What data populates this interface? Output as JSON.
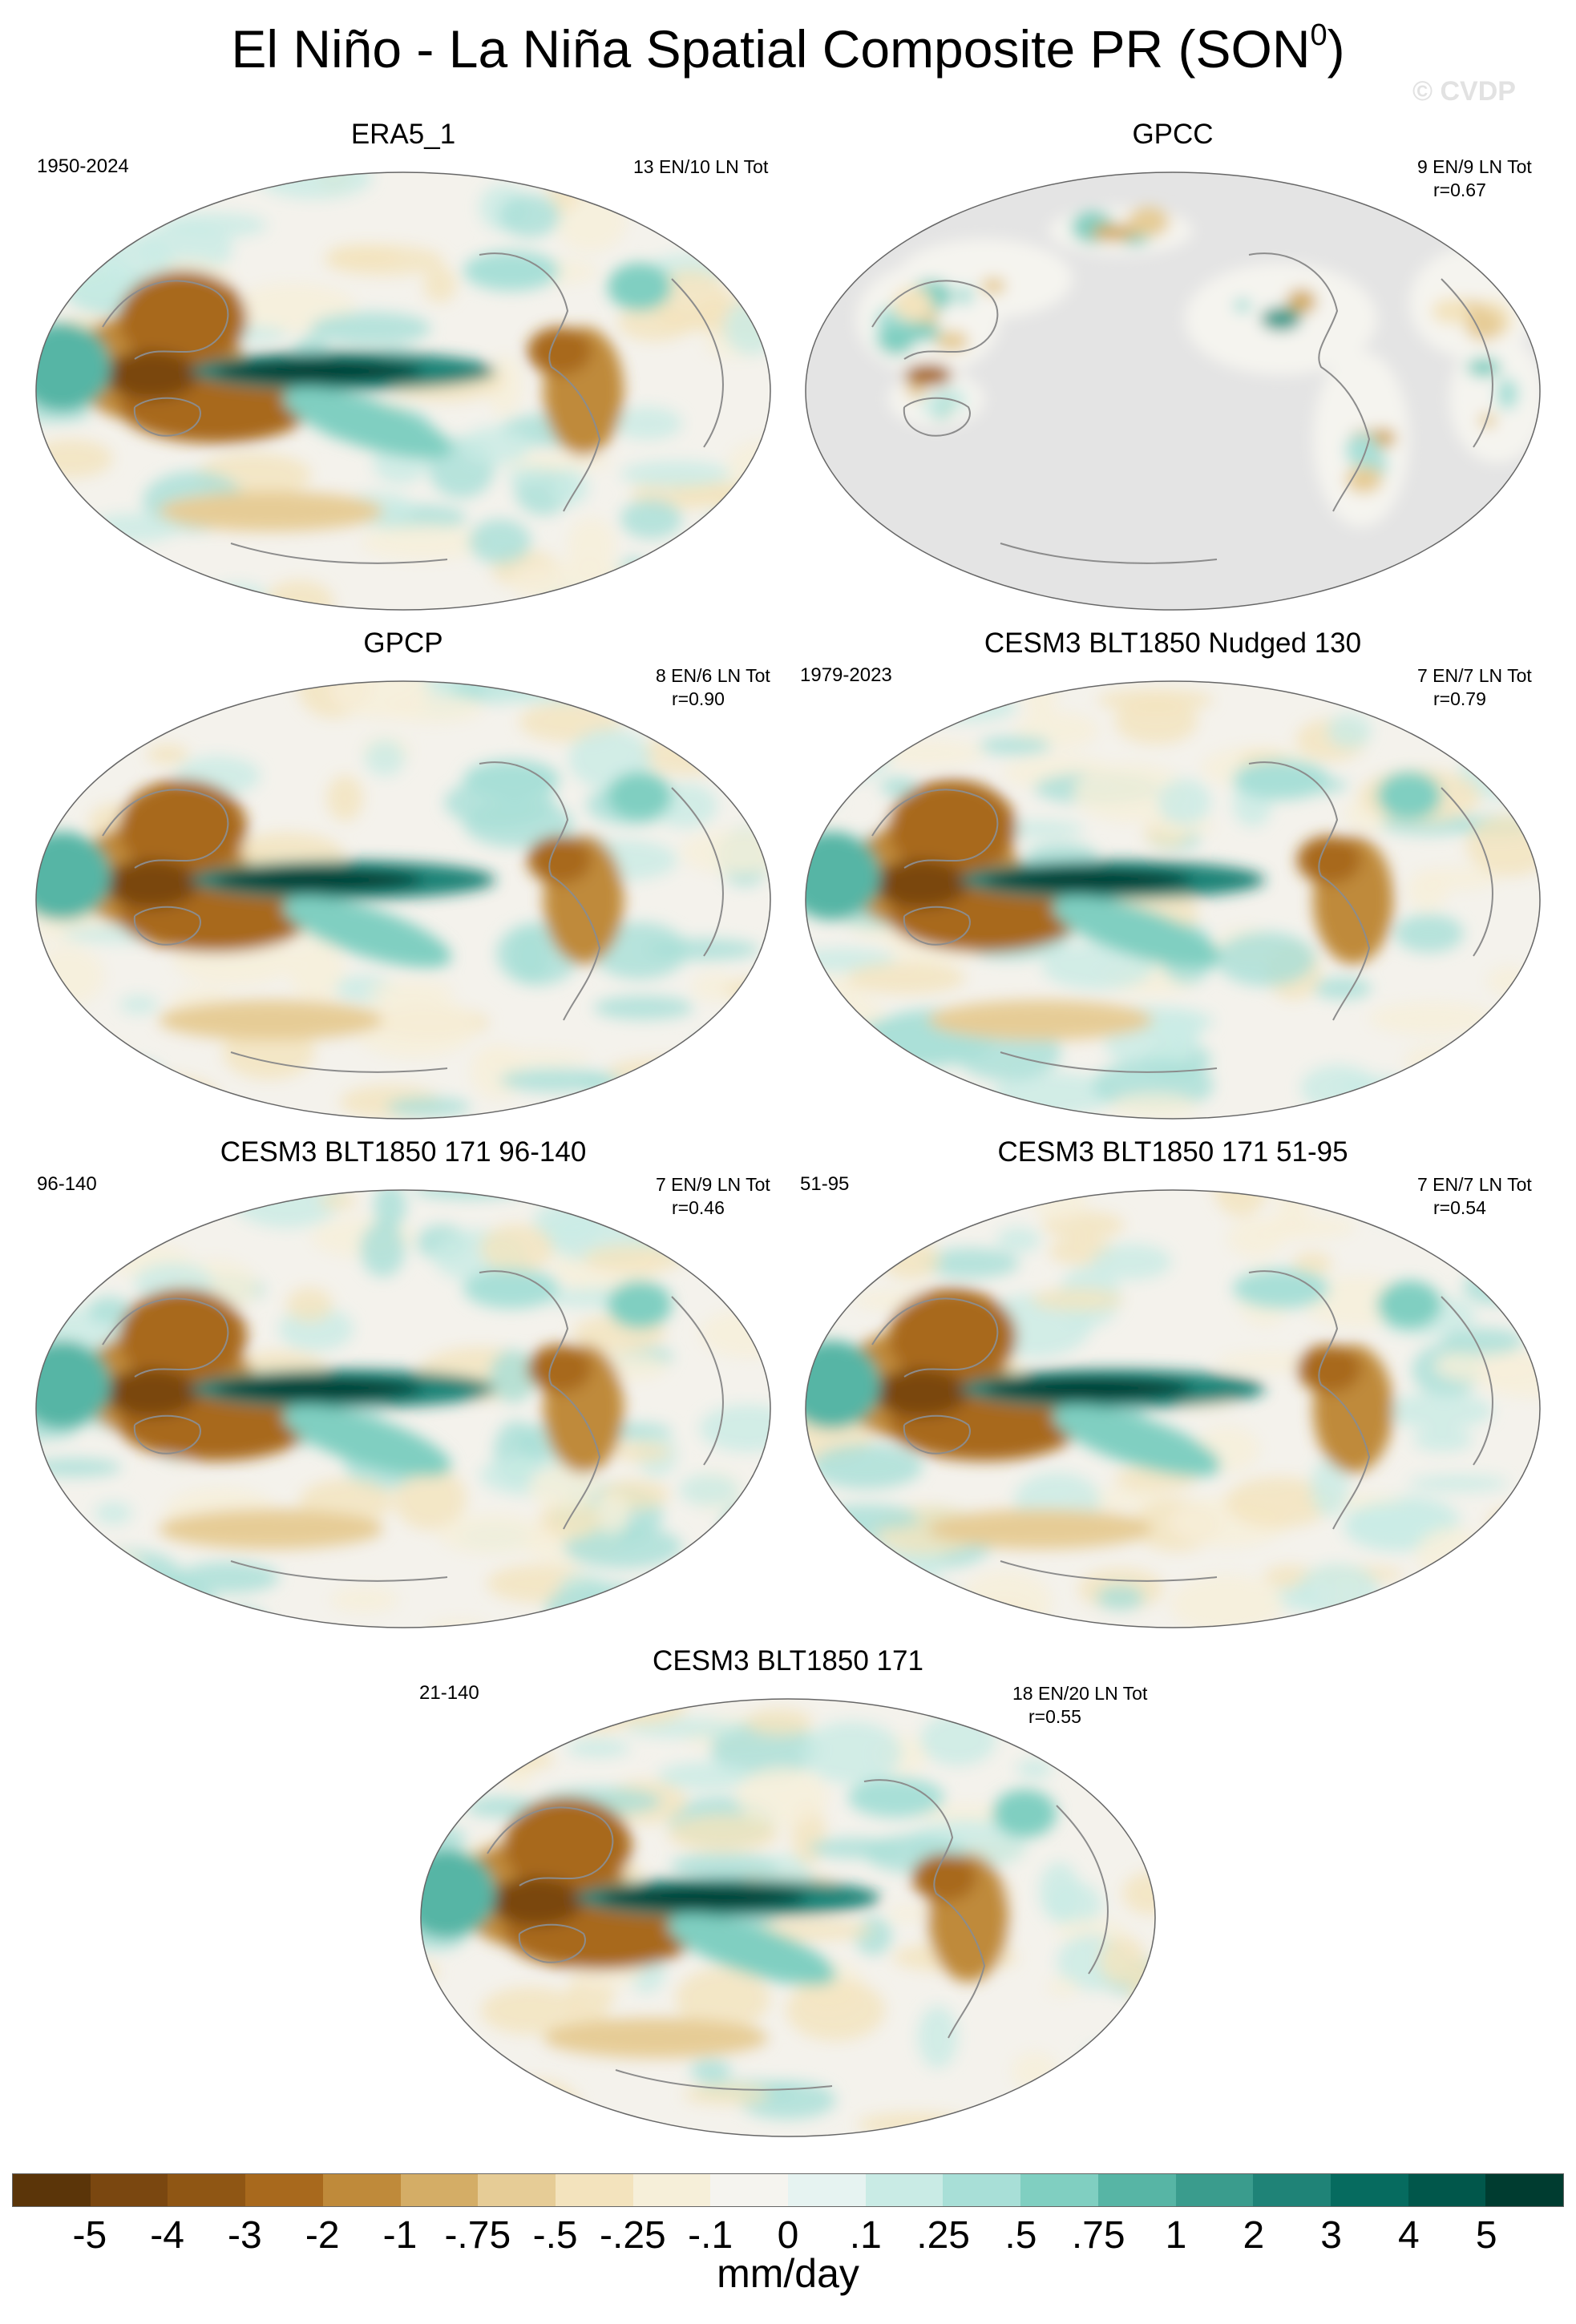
{
  "title": "El Niño - La Niña Spatial Composite PR (SON",
  "title_superscript": "0",
  "title_close": ")",
  "watermark": "© CVDP",
  "panels": [
    {
      "title": "ERA5_1",
      "period": "1950-2024",
      "stats": "13 EN/10 LN Tot",
      "r": ""
    },
    {
      "title": "GPCC",
      "period": "",
      "stats": "9 EN/9 LN Tot",
      "r": "r=0.67"
    },
    {
      "title": "GPCP",
      "period": "",
      "stats": "8 EN/6 LN Tot",
      "r": "r=0.90"
    },
    {
      "title": "CESM3 BLT1850 Nudged 130",
      "period": "1979-2023",
      "stats": "7 EN/7 LN Tot",
      "r": "r=0.79"
    },
    {
      "title": "CESM3 BLT1850 171 96-140",
      "period": "96-140",
      "stats": "7 EN/9 LN Tot",
      "r": "r=0.46"
    },
    {
      "title": "CESM3 BLT1850 171 51-95",
      "period": "51-95",
      "stats": "7 EN/7 LN Tot",
      "r": "r=0.54"
    },
    {
      "title": "CESM3 BLT1850 171",
      "period": "21-140",
      "stats": "18 EN/20 LN Tot",
      "r": "r=0.55"
    }
  ],
  "colorbar": {
    "colors": [
      "#5b3509",
      "#7a4710",
      "#8f5614",
      "#a8691d",
      "#bf8a3a",
      "#d4ad66",
      "#e6cc96",
      "#f3e3bd",
      "#f6efd9",
      "#f5f4ef",
      "#e6f3f1",
      "#c9ebe5",
      "#a8dfd7",
      "#80cfc1",
      "#57b5a5",
      "#3a9c8d",
      "#1f8377",
      "#066b5f",
      "#01574b",
      "#003c30"
    ],
    "labels": [
      "-5",
      "-4",
      "-3",
      "-2",
      "-1",
      "-.75",
      "-.5",
      "-.25",
      "-.1",
      "0",
      ".1",
      ".25",
      ".5",
      ".75",
      "1",
      "2",
      "3",
      "4",
      "5"
    ],
    "unit": "mm/day"
  },
  "map_colors": {
    "ocean": "#f4f2ec",
    "land_mask": "#e4e4e4",
    "coast": "#8c8c8c",
    "frame": "#666666"
  }
}
